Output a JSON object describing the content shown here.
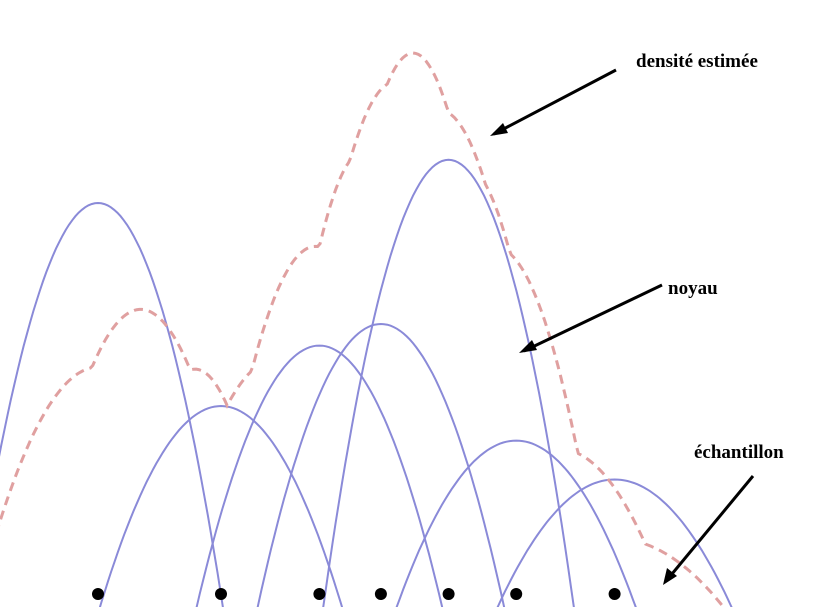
{
  "labels": {
    "estimated_density": "densité estimée",
    "kernel": "noyau",
    "sample": "échantillon"
  },
  "colors": {
    "kernel": "#8a8ad8",
    "density": "#e0a0a0",
    "arrow": "#000000",
    "sample": "#000000"
  },
  "samples": [
    1.0,
    2.0,
    2.8,
    3.3,
    3.85,
    4.4,
    5.2
  ],
  "kernel_heights": [
    1.0,
    0.53,
    0.67,
    0.72,
    1.1,
    0.45,
    0.36
  ]
}
